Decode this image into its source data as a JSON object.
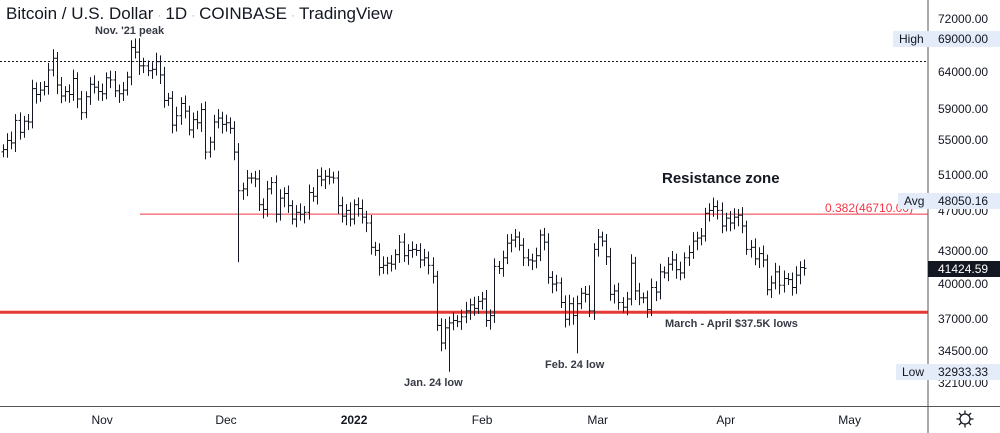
{
  "header": {
    "symbol": "Bitcoin / U.S. Dollar",
    "interval": "1D",
    "exchange": "COINBASE",
    "source": "TradingView"
  },
  "chart_data": {
    "type": "ohlc",
    "scale": "log",
    "start_date": "2021-10-08",
    "closes": [
      53.9,
      55.0,
      54.7,
      57.5,
      56.0,
      57.4,
      57.3,
      61.7,
      60.9,
      61.5,
      62.0,
      64.3,
      66.0,
      62.2,
      60.7,
      61.3,
      60.9,
      63.1,
      60.3,
      58.5,
      60.6,
      62.3,
      61.9,
      61.3,
      61.0,
      63.2,
      62.9,
      61.4,
      61.0,
      61.5,
      63.3,
      67.6,
      66.9,
      64.9,
      64.9,
      64.2,
      64.4,
      65.5,
      63.6,
      60.1,
      60.4,
      56.9,
      58.1,
      59.7,
      58.7,
      56.3,
      57.6,
      57.2,
      58.9,
      53.6,
      54.8,
      57.3,
      57.8,
      57.0,
      57.2,
      56.5,
      53.6,
      49.2,
      49.4,
      50.6,
      50.6,
      50.5,
      47.7,
      47.2,
      49.4,
      50.1,
      46.7,
      48.4,
      48.9,
      47.6,
      46.2,
      46.9,
      46.7,
      46.9,
      49.0,
      48.6,
      50.8,
      50.4,
      50.8,
      50.7,
      50.6,
      47.6,
      46.5,
      47.1,
      46.2,
      47.7,
      47.3,
      46.4,
      45.8,
      43.4,
      43.1,
      41.5,
      41.7,
      41.9,
      41.8,
      42.7,
      43.9,
      42.6,
      43.1,
      43.2,
      43.1,
      42.2,
      42.4,
      41.7,
      40.7,
      36.5,
      35.1,
      36.3,
      36.7,
      36.9,
      36.8,
      37.2,
      37.7,
      38.2,
      37.9,
      38.5,
      38.7,
      36.9,
      37.3,
      41.6,
      41.4,
      42.4,
      43.8,
      44.1,
      44.4,
      43.6,
      42.4,
      42.2,
      42.1,
      42.6,
      44.6,
      43.9,
      40.6,
      40.0,
      40.1,
      38.4,
      37.0,
      38.3,
      37.3,
      38.3,
      39.2,
      39.1,
      37.7,
      43.2,
      44.4,
      44.0,
      42.5,
      39.1,
      39.4,
      38.4,
      38.0,
      38.7,
      41.9,
      39.4,
      38.8,
      38.8,
      37.8,
      39.7,
      39.3,
      41.1,
      41.0,
      41.8,
      42.2,
      41.3,
      41.0,
      42.4,
      42.9,
      44.0,
      44.3,
      44.5,
      46.8,
      47.1,
      47.5,
      47.1,
      45.5,
      46.3,
      45.8,
      46.4,
      46.6,
      45.5,
      43.2,
      43.4,
      42.3,
      42.8,
      42.2,
      39.5,
      40.1,
      41.1,
      39.9,
      40.5,
      40.4,
      39.7,
      40.8,
      41.5,
      41.42
    ],
    "close_units": "thousand USD",
    "extremes": {
      "high": 69000.0,
      "low": 32933.33,
      "dec4_low": 42000,
      "feb24_low": 34300
    },
    "y_ticks": [
      "72000.00",
      "64000.00",
      "59000.00",
      "55000.00",
      "51000.00",
      "47000.00",
      "43000.00",
      "40000.00",
      "37000.00",
      "34500.00",
      "32100.00"
    ],
    "x_ticks": [
      {
        "label": "Nov",
        "date": "2021-11-01"
      },
      {
        "label": "Dec",
        "date": "2021-12-01"
      },
      {
        "label": "2022",
        "date": "2022-01-01",
        "bold": true
      },
      {
        "label": "Feb",
        "date": "2022-02-01"
      },
      {
        "label": "Mar",
        "date": "2022-03-01"
      },
      {
        "label": "Apr",
        "date": "2022-04-01"
      },
      {
        "label": "May",
        "date": "2022-05-01"
      }
    ],
    "price_tags": {
      "high_label": "High",
      "high_value": "69000.00",
      "avg_label": "Avg",
      "avg_value": "48050.16",
      "low_label": "Low",
      "low_value": "32933.33",
      "last_value": "41424.59"
    },
    "fib_level": {
      "label": "0.382(46710.00)",
      "price": 46710
    },
    "support_level": {
      "price": 37500
    },
    "dotted_level": {
      "price": 65600
    },
    "annotations": {
      "peak": "Nov. '21 peak",
      "resistance": "Resistance zone",
      "jan_low": "Jan. 24 low",
      "feb_low": "Feb. 24 low",
      "lows": "March - April $37.5K lows"
    },
    "colors": {
      "bar": "#131722",
      "fib": "#f23645",
      "support": "#e53935",
      "tag_bg": "#e3ecf8"
    }
  }
}
